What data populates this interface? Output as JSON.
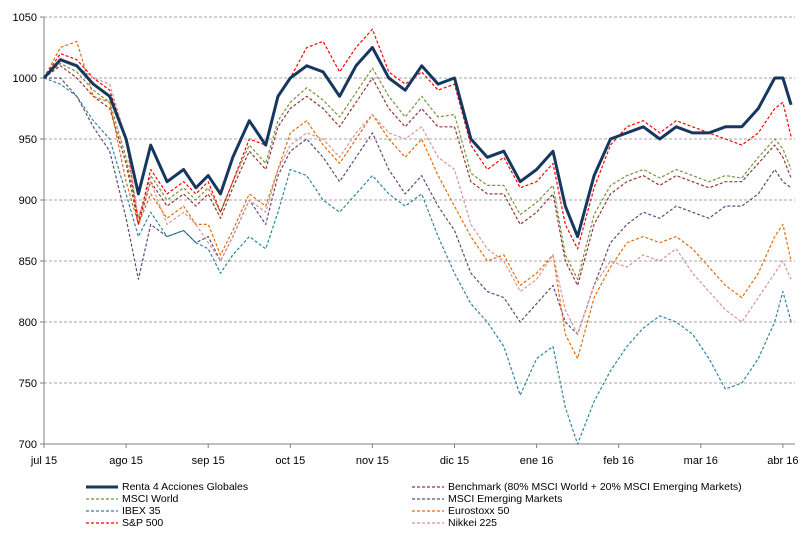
{
  "chart_data": {
    "type": "line",
    "title": "",
    "xlabel": "",
    "ylabel": "",
    "ylim": [
      700,
      1050
    ],
    "yticks": [
      700,
      750,
      800,
      850,
      900,
      950,
      1000,
      1050
    ],
    "x_ticks": [
      "jul 15",
      "ago 15",
      "sep 15",
      "oct 15",
      "nov 15",
      "dic 15",
      "ene 16",
      "feb 16",
      "mar 16",
      "abr 16"
    ],
    "grid": "horizontal dashed",
    "legend_position": "bottom",
    "x_months": [
      0,
      1,
      2,
      3,
      4,
      5,
      6,
      7,
      8,
      9
    ],
    "series": [
      {
        "name": "Renta 4 Acciones Globales",
        "color": "#17375e",
        "dash": "solid",
        "width": 3,
        "x": [
          0,
          0.2,
          0.4,
          0.6,
          0.8,
          1.0,
          1.15,
          1.3,
          1.5,
          1.7,
          1.85,
          2.0,
          2.15,
          2.3,
          2.5,
          2.7,
          2.85,
          3.0,
          3.2,
          3.4,
          3.6,
          3.8,
          4.0,
          4.2,
          4.4,
          4.6,
          4.8,
          5.0,
          5.2,
          5.4,
          5.6,
          5.8,
          6.0,
          6.2,
          6.35,
          6.5,
          6.7,
          6.9,
          7.1,
          7.3,
          7.5,
          7.7,
          7.9,
          8.1,
          8.3,
          8.5,
          8.7,
          8.9,
          9.0,
          9.1
        ],
        "y": [
          1000,
          1015,
          1010,
          995,
          985,
          950,
          905,
          945,
          915,
          925,
          910,
          920,
          905,
          935,
          965,
          945,
          985,
          1000,
          1010,
          1005,
          985,
          1010,
          1025,
          1000,
          990,
          1010,
          995,
          1000,
          950,
          935,
          940,
          915,
          925,
          940,
          895,
          870,
          920,
          950,
          955,
          960,
          950,
          960,
          955,
          955,
          960,
          960,
          975,
          1000,
          1000,
          978
        ]
      },
      {
        "name": "Benchmark (80% MSCI World + 20% MSCI Emerging Markets)",
        "color": "#953735",
        "dash": "dashed",
        "width": 1.2,
        "x": [
          0,
          0.2,
          0.4,
          0.6,
          0.8,
          1.0,
          1.15,
          1.3,
          1.5,
          1.7,
          1.85,
          2.0,
          2.15,
          2.3,
          2.5,
          2.7,
          2.85,
          3.0,
          3.2,
          3.4,
          3.6,
          3.8,
          4.0,
          4.2,
          4.4,
          4.6,
          4.8,
          5.0,
          5.2,
          5.4,
          5.6,
          5.8,
          6.0,
          6.2,
          6.35,
          6.5,
          6.7,
          6.9,
          7.1,
          7.3,
          7.5,
          7.7,
          7.9,
          8.1,
          8.3,
          8.5,
          8.7,
          8.9,
          9.0,
          9.1
        ],
        "y": [
          1000,
          1010,
          1000,
          985,
          975,
          930,
          880,
          915,
          895,
          905,
          895,
          905,
          885,
          910,
          940,
          925,
          960,
          975,
          985,
          975,
          960,
          980,
          1000,
          975,
          960,
          975,
          960,
          960,
          915,
          905,
          905,
          880,
          890,
          905,
          850,
          830,
          880,
          905,
          915,
          920,
          912,
          920,
          915,
          910,
          915,
          915,
          930,
          945,
          935,
          918
        ]
      },
      {
        "name": "MSCI World",
        "color": "#77933c",
        "dash": "dashed",
        "width": 1.2,
        "x": [
          0,
          0.2,
          0.4,
          0.6,
          0.8,
          1.0,
          1.15,
          1.3,
          1.5,
          1.7,
          1.85,
          2.0,
          2.15,
          2.3,
          2.5,
          2.7,
          2.85,
          3.0,
          3.2,
          3.4,
          3.6,
          3.8,
          4.0,
          4.2,
          4.4,
          4.6,
          4.8,
          5.0,
          5.2,
          5.4,
          5.6,
          5.8,
          6.0,
          6.2,
          6.35,
          6.5,
          6.7,
          6.9,
          7.1,
          7.3,
          7.5,
          7.7,
          7.9,
          8.1,
          8.3,
          8.5,
          8.7,
          8.9,
          9.0,
          9.1
        ],
        "y": [
          1000,
          1012,
          1005,
          990,
          980,
          935,
          885,
          920,
          900,
          910,
          900,
          910,
          890,
          915,
          945,
          930,
          965,
          980,
          992,
          982,
          968,
          988,
          1008,
          985,
          968,
          985,
          968,
          970,
          922,
          912,
          912,
          888,
          898,
          912,
          855,
          835,
          888,
          912,
          920,
          925,
          918,
          925,
          920,
          915,
          920,
          918,
          935,
          950,
          942,
          925
        ]
      },
      {
        "name": "MSCI Emerging Markets",
        "color": "#604a7b",
        "dash": "dashed",
        "width": 1.2,
        "x": [
          0,
          0.2,
          0.4,
          0.6,
          0.8,
          1.0,
          1.15,
          1.3,
          1.5,
          1.7,
          1.85,
          2.0,
          2.15,
          2.3,
          2.5,
          2.7,
          2.85,
          3.0,
          3.2,
          3.4,
          3.6,
          3.8,
          4.0,
          4.2,
          4.4,
          4.6,
          4.8,
          5.0,
          5.2,
          5.4,
          5.6,
          5.8,
          6.0,
          6.2,
          6.35,
          6.5,
          6.7,
          6.9,
          7.1,
          7.3,
          7.5,
          7.7,
          7.9,
          8.1,
          8.3,
          8.5,
          8.7,
          8.9,
          9.0,
          9.1
        ],
        "y": [
          1000,
          1000,
          985,
          960,
          940,
          885,
          835,
          880,
          870,
          875,
          865,
          870,
          850,
          870,
          900,
          880,
          920,
          940,
          950,
          935,
          915,
          935,
          955,
          925,
          905,
          920,
          895,
          875,
          840,
          825,
          820,
          800,
          815,
          830,
          800,
          790,
          830,
          865,
          880,
          890,
          885,
          895,
          890,
          885,
          895,
          895,
          905,
          925,
          915,
          910
        ]
      },
      {
        "name": "IBEX 35",
        "color": "#31859c",
        "dash": "dashed",
        "width": 1.2,
        "x": [
          0,
          0.2,
          0.4,
          0.6,
          0.8,
          1.0,
          1.15,
          1.3,
          1.5,
          1.7,
          1.85,
          2.0,
          2.15,
          2.3,
          2.5,
          2.7,
          2.85,
          3.0,
          3.2,
          3.4,
          3.6,
          3.8,
          4.0,
          4.2,
          4.4,
          4.6,
          4.8,
          5.0,
          5.2,
          5.4,
          5.6,
          5.8,
          6.0,
          6.2,
          6.35,
          6.5,
          6.7,
          6.9,
          7.1,
          7.3,
          7.5,
          7.7,
          7.9,
          8.1,
          8.3,
          8.5,
          8.7,
          8.9,
          9.0,
          9.1
        ],
        "y": [
          1000,
          995,
          985,
          965,
          950,
          905,
          870,
          890,
          870,
          875,
          865,
          860,
          840,
          855,
          870,
          860,
          890,
          925,
          920,
          900,
          890,
          905,
          920,
          905,
          895,
          905,
          870,
          840,
          815,
          800,
          780,
          740,
          770,
          780,
          730,
          700,
          735,
          760,
          780,
          795,
          805,
          800,
          790,
          770,
          745,
          750,
          770,
          800,
          825,
          800
        ]
      },
      {
        "name": "Eurostoxx 50",
        "color": "#e46c0a",
        "dash": "dashed",
        "width": 1.2,
        "x": [
          0,
          0.2,
          0.4,
          0.6,
          0.8,
          1.0,
          1.15,
          1.3,
          1.5,
          1.7,
          1.85,
          2.0,
          2.15,
          2.3,
          2.5,
          2.7,
          2.85,
          3.0,
          3.2,
          3.4,
          3.6,
          3.8,
          4.0,
          4.2,
          4.4,
          4.6,
          4.8,
          5.0,
          5.2,
          5.4,
          5.6,
          5.8,
          6.0,
          6.2,
          6.35,
          6.5,
          6.7,
          6.9,
          7.1,
          7.3,
          7.5,
          7.7,
          7.9,
          8.1,
          8.3,
          8.5,
          8.7,
          8.9,
          9.0,
          9.1
        ],
        "y": [
          1000,
          1025,
          1030,
          985,
          980,
          915,
          880,
          905,
          885,
          895,
          880,
          880,
          855,
          875,
          905,
          895,
          925,
          955,
          965,
          945,
          930,
          950,
          970,
          950,
          935,
          950,
          920,
          895,
          870,
          850,
          855,
          830,
          840,
          855,
          790,
          770,
          820,
          845,
          865,
          870,
          865,
          870,
          860,
          845,
          830,
          820,
          840,
          870,
          880,
          850
        ]
      },
      {
        "name": "S&P 500",
        "color": "#ff0000",
        "dash": "dashed",
        "width": 1.2,
        "x": [
          0,
          0.2,
          0.4,
          0.6,
          0.8,
          1.0,
          1.15,
          1.3,
          1.5,
          1.7,
          1.85,
          2.0,
          2.15,
          2.3,
          2.5,
          2.7,
          2.85,
          3.0,
          3.2,
          3.4,
          3.6,
          3.8,
          4.0,
          4.2,
          4.4,
          4.6,
          4.8,
          5.0,
          5.2,
          5.4,
          5.6,
          5.8,
          6.0,
          6.2,
          6.35,
          6.5,
          6.7,
          6.9,
          7.1,
          7.3,
          7.5,
          7.7,
          7.9,
          8.1,
          8.3,
          8.5,
          8.7,
          8.9,
          9.0,
          9.1
        ],
        "y": [
          1000,
          1020,
          1015,
          1000,
          990,
          950,
          880,
          925,
          905,
          915,
          905,
          915,
          890,
          915,
          950,
          945,
          985,
          1000,
          1025,
          1030,
          1005,
          1025,
          1040,
          1005,
          995,
          1005,
          990,
          995,
          945,
          925,
          935,
          910,
          915,
          930,
          880,
          860,
          910,
          945,
          960,
          965,
          955,
          965,
          960,
          955,
          950,
          945,
          955,
          975,
          980,
          952
        ]
      },
      {
        "name": "Nikkei 225",
        "color": "#d99594",
        "dash": "dashed",
        "width": 1.2,
        "x": [
          0,
          0.2,
          0.4,
          0.6,
          0.8,
          1.0,
          1.15,
          1.3,
          1.5,
          1.7,
          1.85,
          2.0,
          2.15,
          2.3,
          2.5,
          2.7,
          2.85,
          3.0,
          3.2,
          3.4,
          3.6,
          3.8,
          4.0,
          4.2,
          4.4,
          4.6,
          4.8,
          5.0,
          5.2,
          5.4,
          5.6,
          5.8,
          6.0,
          6.2,
          6.35,
          6.5,
          6.7,
          6.9,
          7.1,
          7.3,
          7.5,
          7.7,
          7.9,
          8.1,
          8.3,
          8.5,
          8.7,
          8.9,
          9.0,
          9.1
        ],
        "y": [
          1000,
          1015,
          1010,
          1000,
          995,
          950,
          885,
          915,
          880,
          890,
          880,
          865,
          850,
          870,
          900,
          890,
          925,
          945,
          955,
          950,
          935,
          955,
          970,
          955,
          950,
          960,
          935,
          925,
          880,
          860,
          850,
          825,
          835,
          855,
          810,
          790,
          830,
          850,
          845,
          855,
          850,
          860,
          840,
          825,
          810,
          800,
          820,
          840,
          850,
          835
        ]
      }
    ]
  }
}
